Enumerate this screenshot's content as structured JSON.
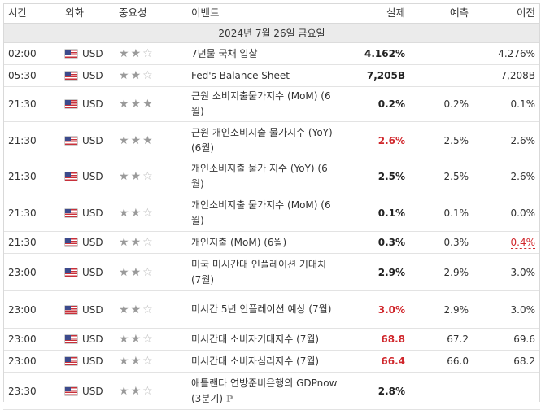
{
  "headers": {
    "time": "시간",
    "currency": "외화",
    "importance": "중요성",
    "event": "이벤트",
    "actual": "실제",
    "forecast": "예측",
    "previous": "이전"
  },
  "date_label": "2024년 7월 26일 금요일",
  "colors": {
    "negative": "#d0272c",
    "date_bg": "#ebebeb",
    "star": "#9a9a9a"
  },
  "rows": [
    {
      "time": "02:00",
      "currency": "USD",
      "importance": 2,
      "event": "7년물 국채 입찰",
      "actual": "4.162%",
      "actual_color": "default",
      "forecast": "",
      "previous": "4.276%"
    },
    {
      "time": "05:30",
      "currency": "USD",
      "importance": 2,
      "event": "Fed's Balance Sheet",
      "actual": "7,205B",
      "actual_color": "default",
      "forecast": "",
      "previous": "7,208B"
    },
    {
      "time": "21:30",
      "currency": "USD",
      "importance": 3,
      "event": "근원 소비지출물가지수 (MoM) (6월)",
      "actual": "0.2%",
      "actual_color": "default",
      "forecast": "0.2%",
      "previous": "0.1%"
    },
    {
      "time": "21:30",
      "currency": "USD",
      "importance": 3,
      "event": "근원 개인소비지출 물가지수 (YoY) (6월)",
      "actual": "2.6%",
      "actual_color": "red",
      "forecast": "2.5%",
      "previous": "2.6%"
    },
    {
      "time": "21:30",
      "currency": "USD",
      "importance": 2,
      "event": "개인소비지출 물가 지수 (YoY) (6월)",
      "actual": "2.5%",
      "actual_color": "default",
      "forecast": "2.5%",
      "previous": "2.6%"
    },
    {
      "time": "21:30",
      "currency": "USD",
      "importance": 2,
      "event": "개인소비지출 물가지수 (MoM) (6월)",
      "actual": "0.1%",
      "actual_color": "default",
      "forecast": "0.1%",
      "previous": "0.0%"
    },
    {
      "time": "21:30",
      "currency": "USD",
      "importance": 2,
      "event": "개인지출 (MoM) (6월)",
      "actual": "0.3%",
      "actual_color": "default",
      "forecast": "0.3%",
      "previous": "0.4%",
      "previous_revised": true
    },
    {
      "time": "23:00",
      "currency": "USD",
      "importance": 2,
      "event": "미국 미시간대 인플레이션 기대치 (7월)",
      "actual": "2.9%",
      "actual_color": "default",
      "forecast": "2.9%",
      "previous": "3.0%"
    },
    {
      "time": "23:00",
      "currency": "USD",
      "importance": 2,
      "event": "미시간 5년 인플레이션 예상 (7월)",
      "actual": "3.0%",
      "actual_color": "red",
      "forecast": "2.9%",
      "previous": "3.0%"
    },
    {
      "time": "23:00",
      "currency": "USD",
      "importance": 2,
      "event": "미시간대 소비자기대지수 (7월)",
      "actual": "68.8",
      "actual_color": "red",
      "forecast": "67.2",
      "previous": "69.6"
    },
    {
      "time": "23:00",
      "currency": "USD",
      "importance": 2,
      "event": "미시간대 소비자심리지수 (7월)",
      "actual": "66.4",
      "actual_color": "red",
      "forecast": "66.0",
      "previous": "68.2"
    },
    {
      "time": "23:30",
      "currency": "USD",
      "importance": 2,
      "event": "애틀랜타 연방준비은행의 GDPnow (3분기)",
      "actual": "2.8%",
      "actual_color": "default",
      "forecast": "",
      "previous": "",
      "event_badge": "P"
    }
  ]
}
